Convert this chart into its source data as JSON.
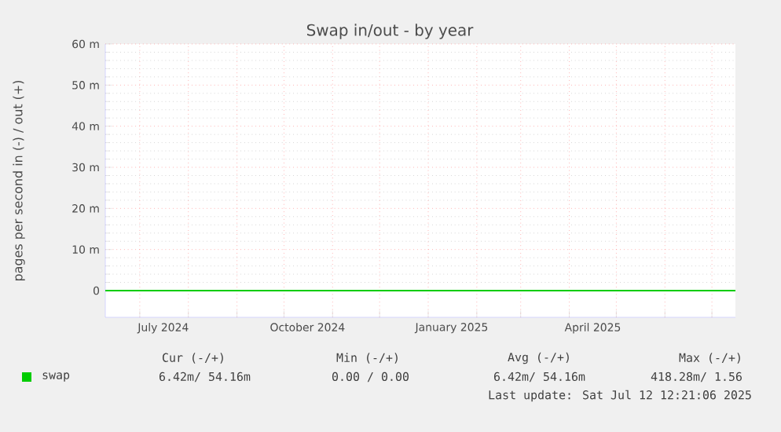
{
  "chart_data": {
    "type": "line",
    "title": "Swap in/out - by year",
    "ylabel": "pages per second in (-) / out (+)",
    "xlim": [
      "2024-06-09",
      "2025-07-16"
    ],
    "xticks": [
      {
        "value": "2024-07-01",
        "label": null
      },
      {
        "value": "2024-08-01",
        "label": null
      },
      {
        "value": "2024-09-01",
        "label": null
      },
      {
        "value": "2024-10-01",
        "label": null
      },
      {
        "value": "2024-11-01",
        "label": null
      },
      {
        "value": "2024-12-01",
        "label": null
      },
      {
        "value": "2025-01-01",
        "label": null
      },
      {
        "value": "2025-02-01",
        "label": null
      },
      {
        "value": "2025-03-01",
        "label": null
      },
      {
        "value": "2025-04-01",
        "label": null
      },
      {
        "value": "2025-05-01",
        "label": null
      },
      {
        "value": "2025-06-01",
        "label": null
      },
      {
        "value": "2025-07-01",
        "label": null
      },
      {
        "value": "2024-07-16",
        "label": "July 2024"
      },
      {
        "value": "2024-10-16",
        "label": "October 2024"
      },
      {
        "value": "2025-01-16",
        "label": "January 2025"
      },
      {
        "value": "2025-04-16",
        "label": "April 2025"
      }
    ],
    "ylim": [
      -6.5,
      60
    ],
    "yticks": [
      {
        "value": 0,
        "label": "0"
      },
      {
        "value": 10,
        "label": "10 m"
      },
      {
        "value": 20,
        "label": "20 m"
      },
      {
        "value": 30,
        "label": "30 m"
      },
      {
        "value": 40,
        "label": "40 m"
      },
      {
        "value": 50,
        "label": "50 m"
      },
      {
        "value": 60,
        "label": "60 m"
      }
    ],
    "grid": true,
    "legend": "bottom left",
    "series": [
      {
        "name": "swap",
        "color": "#00cc00",
        "x": [
          "2024-06-09",
          "2025-07-16"
        ],
        "values": [
          0,
          0
        ]
      }
    ],
    "annotations": [
      "Cur (-/+)",
      "Min (-/+)",
      "Avg (-/+)",
      "Max (-/+)",
      "6.42m/ 54.16m",
      "0.00 / 0.00",
      "6.42m/ 54.16m",
      "418.28m/ 1.56",
      "Last update: Sat Jul 12 12:21:06 2025"
    ]
  }
}
